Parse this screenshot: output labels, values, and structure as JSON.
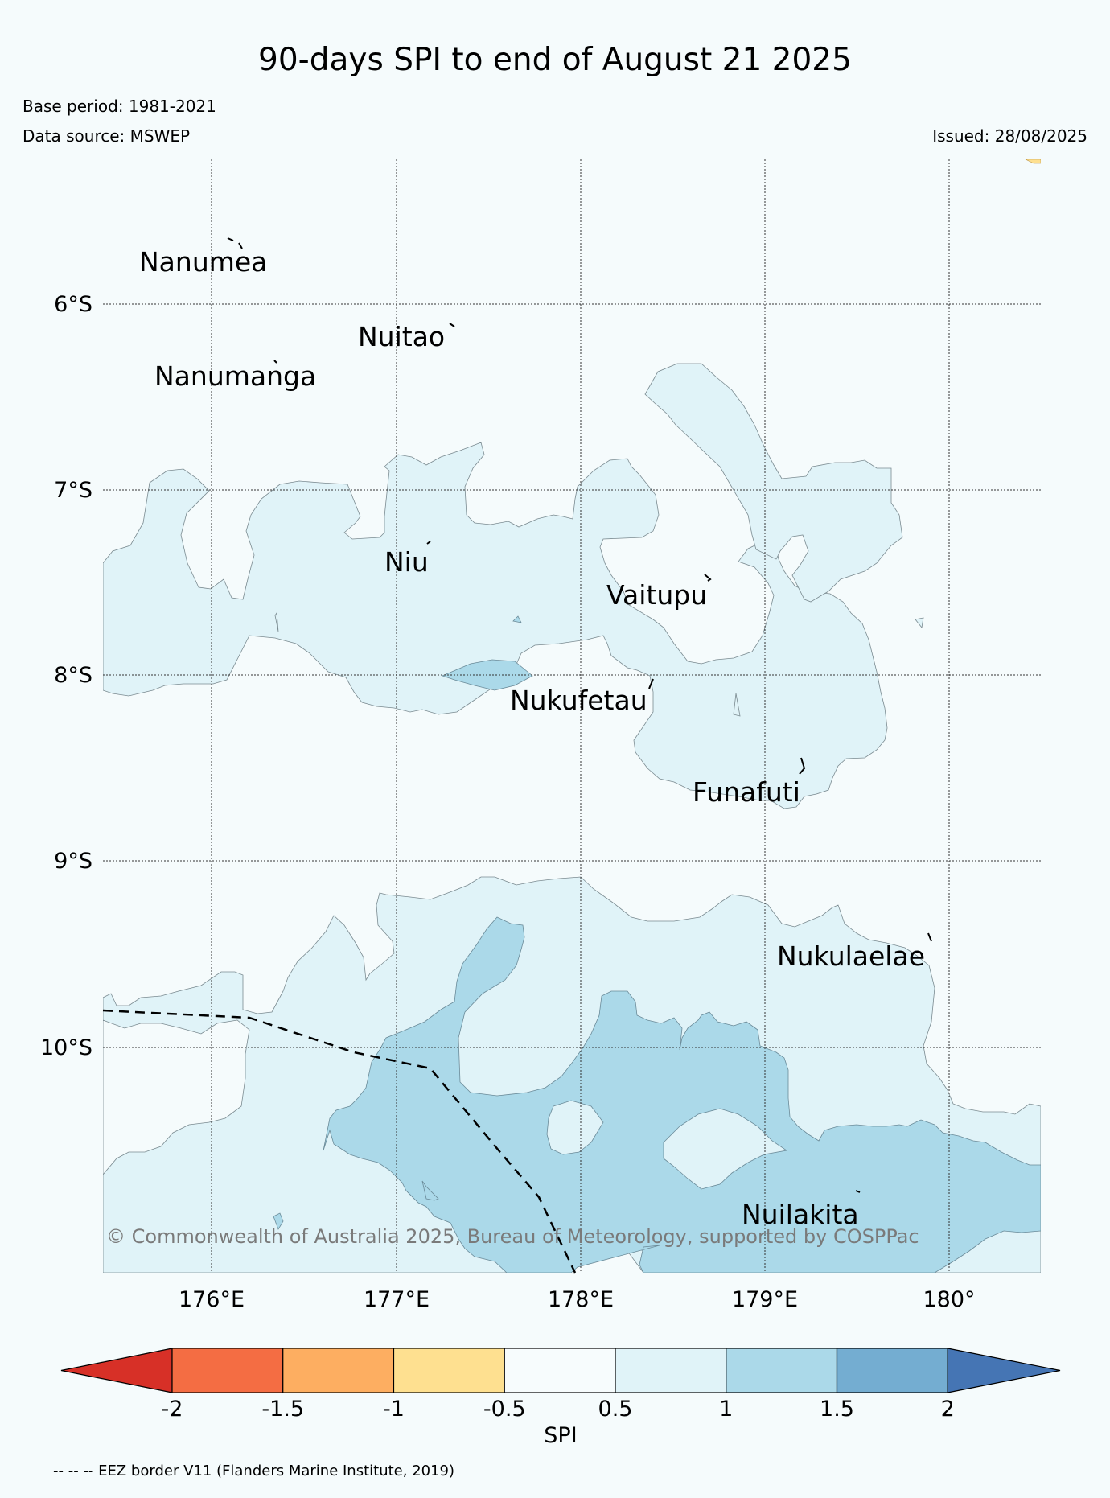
{
  "header": {
    "title": "90-days SPI to end of August 21 2025",
    "base_period": "Base period: 1981-2021",
    "data_source": "Data source: MSWEP",
    "issued": "Issued: 28/08/2025"
  },
  "map": {
    "lon_ticks": [
      "176°E",
      "177°E",
      "178°E",
      "179°E",
      "180°"
    ],
    "lat_ticks": [
      "6°S",
      "7°S",
      "8°S",
      "9°S",
      "10°S"
    ],
    "islands": [
      "Nanumea",
      "Nuitao",
      "Nanumanga",
      "Niu",
      "Vaitupu",
      "Nukufetau",
      "Funafuti",
      "Nukulaelae",
      "Nuilakita"
    ],
    "copyright": "© Commonwealth of Australia 2025, Bureau of Meteorology, supported by COSPPac",
    "eez_note": "-- -- -- EEZ border V11 (Flanders Marine Institute, 2019)"
  },
  "colorbar": {
    "title": "SPI",
    "ticks": [
      "-2",
      "-1.5",
      "-1",
      "-0.5",
      "0.5",
      "1",
      "1.5",
      "2"
    ],
    "colors": [
      "#d73027",
      "#f46d43",
      "#fdae61",
      "#fee090",
      "#f7fcfd",
      "#e0f3f8",
      "#abd9e9",
      "#74add1",
      "#4575b4"
    ]
  },
  "legend_colors": {
    "spi_0_5_to_1": "#e0f3f8",
    "spi_1_to_1_5": "#abd9e9",
    "spi_minus1_to_minus0_5": "#fee090",
    "background": "#f5fbfc"
  }
}
